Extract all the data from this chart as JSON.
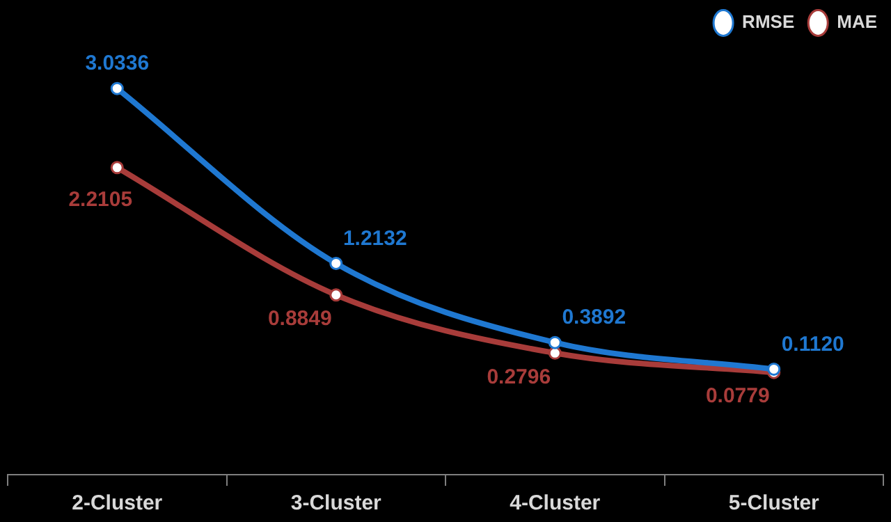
{
  "chart_data": {
    "type": "line",
    "categories": [
      "2-Cluster",
      "3-Cluster",
      "4-Cluster",
      "5-Cluster"
    ],
    "series": [
      {
        "name": "RMSE",
        "color": "#1f78d1",
        "values": [
          3.0336,
          1.2132,
          0.3892,
          0.112
        ],
        "value_labels": [
          "3.0336",
          "1.2132",
          "0.3892",
          "0.1120"
        ]
      },
      {
        "name": "MAE",
        "color": "#a83c3a",
        "values": [
          2.2105,
          0.8849,
          0.2796,
          0.0779
        ],
        "value_labels": [
          "2.2105",
          "0.8849",
          "0.2796",
          "0.0779"
        ]
      }
    ],
    "tick_labels": "x",
    "legend": "top right",
    "marker": "circle",
    "line_style": "solid",
    "grid": false
  }
}
